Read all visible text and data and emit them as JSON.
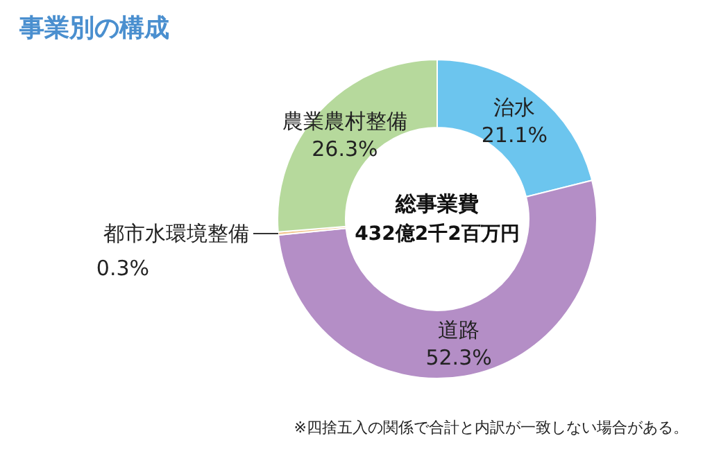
{
  "chart_data": {
    "type": "donut",
    "title": "事業別の構成",
    "categories": [
      "治水",
      "道路",
      "都市水環境整備",
      "農業農村整備"
    ],
    "values": [
      21.1,
      52.3,
      0.3,
      26.3
    ],
    "value_labels": [
      "21.1%",
      "52.3%",
      "0.3%",
      "26.3%"
    ],
    "colors": [
      "#6cc5ee",
      "#b48ec6",
      "#f2c48a",
      "#b6d99c"
    ],
    "annotations": [
      "総事業費",
      "432億2千2百万円",
      "※四捨五入の関係で合計と内訳が一致しない場合がある。"
    ]
  }
}
